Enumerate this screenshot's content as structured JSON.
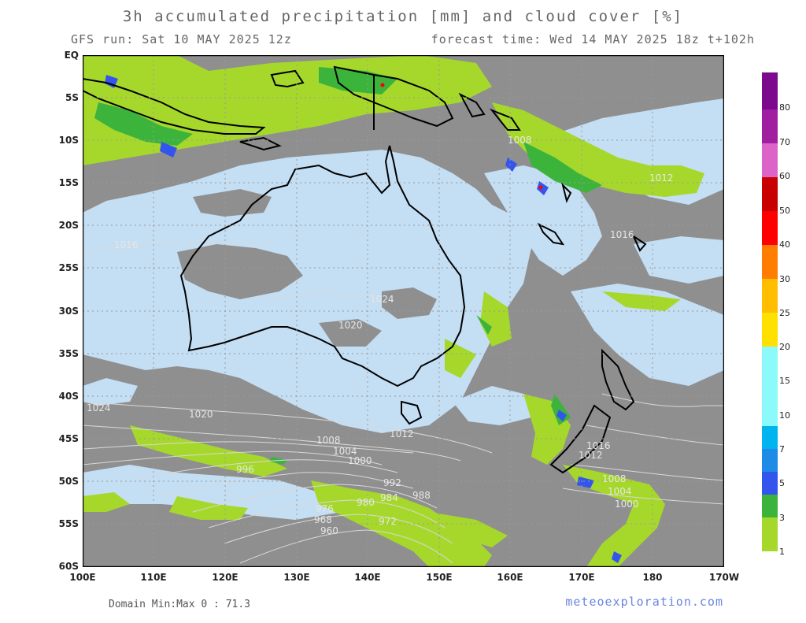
{
  "title": "3h accumulated precipitation [mm] and cloud cover [%]",
  "run_label": "GFS run: Sat 10 MAY 2025 12z",
  "forecast_label": "forecast time: Wed 14 MAY 2025 18z  t+102h",
  "lat_labels": [
    "EQ",
    "5S",
    "10S",
    "15S",
    "20S",
    "25S",
    "30S",
    "35S",
    "40S",
    "45S",
    "50S",
    "55S",
    "60S"
  ],
  "lon_labels": [
    "100E",
    "110E",
    "120E",
    "130E",
    "140E",
    "150E",
    "160E",
    "170E",
    "180",
    "170W"
  ],
  "minmax": "Domain Min:Max 0 : 71.3",
  "credit": "meteoexploration.com",
  "colorbar": {
    "labels": [
      "1",
      "3",
      "5",
      "7",
      "10",
      "15",
      "20",
      "25",
      "30",
      "40",
      "50",
      "60",
      "70",
      "80"
    ],
    "colors": [
      "#a6d82c",
      "#3cb43c",
      "#2da048",
      "#3355ee",
      "#1e8ce6",
      "#00b4f0",
      "#8cfafa",
      "#ffe100",
      "#ffbe00",
      "#ff7d00",
      "#ff0000",
      "#c80000",
      "#dc64c8",
      "#a01ea0",
      "#7b0a8c"
    ]
  },
  "isobars": [
    "1024",
    "1020",
    "1016",
    "1012",
    "1008",
    "1004",
    "1000",
    "996",
    "992",
    "988",
    "984",
    "980",
    "976",
    "972",
    "968",
    "960",
    "1012",
    "1008",
    "1004",
    "1000",
    "1016",
    "1012",
    "1008",
    "1016",
    "1020",
    "1024"
  ],
  "colors": {
    "cloud": "#8f8f8f",
    "clear": "#c4def4",
    "coast": "#000000"
  }
}
